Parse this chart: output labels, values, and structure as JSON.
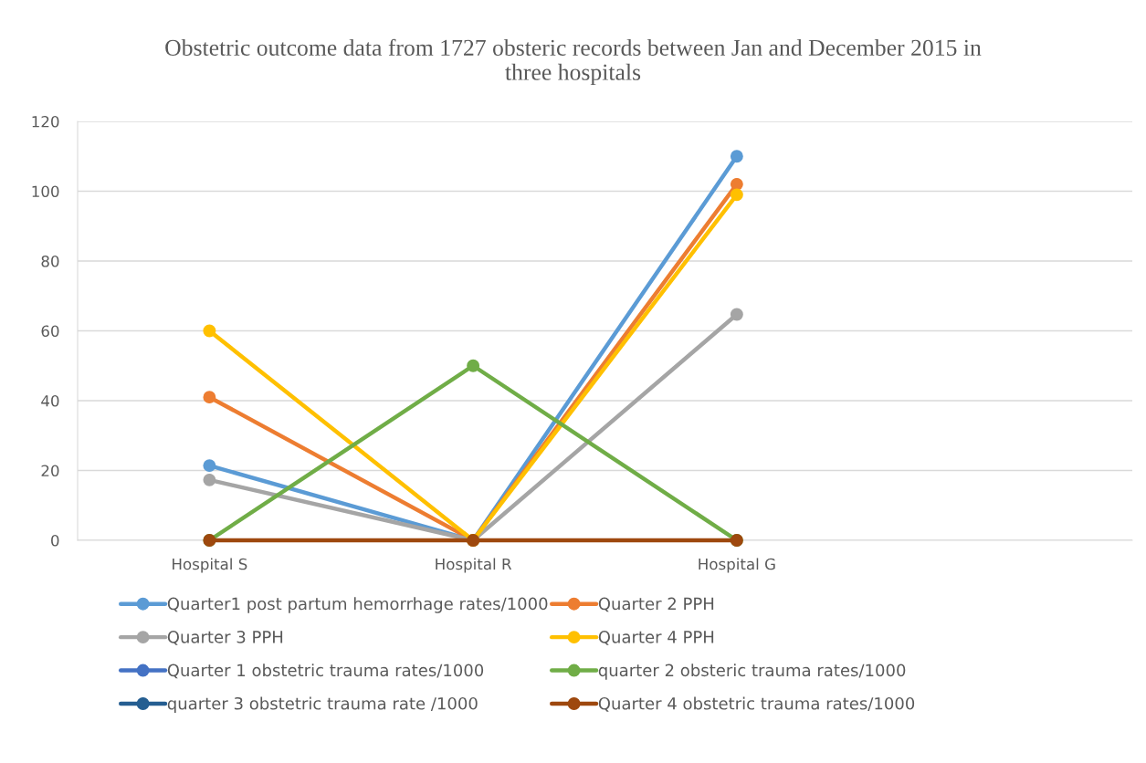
{
  "chart_data": {
    "type": "line",
    "title": "Obstetric outcome data from 1727 obsteric records between Jan and December 2015 in three hospitals",
    "categories": [
      "Hospital S",
      "Hospital R",
      "Hospital G",
      null
    ],
    "series": [
      {
        "name": "Quarter1 post partum hemorrhage rates/1000",
        "color": "#5b9bd5",
        "values": [
          21.4,
          0,
          110,
          null
        ]
      },
      {
        "name": "Quarter 2 PPH",
        "color": "#ed7d31",
        "values": [
          41,
          0,
          102,
          null
        ]
      },
      {
        "name": "Quarter 3 PPH",
        "color": "#a5a5a5",
        "values": [
          17.3,
          0,
          64.7,
          null
        ]
      },
      {
        "name": "Quarter 4 PPH",
        "color": "#ffc000",
        "values": [
          60,
          0,
          99,
          null
        ]
      },
      {
        "name": "Quarter 1 obstetric trauma rates/1000",
        "color": "#4472c4",
        "values": [
          null,
          null,
          null,
          null
        ]
      },
      {
        "name": "quarter 2 obsteric trauma rates/1000",
        "color": "#70ad47",
        "values": [
          0,
          50,
          0,
          null
        ]
      },
      {
        "name": "quarter 3 obstetric trauma rate /1000",
        "color": "#255e91",
        "values": [
          null,
          null,
          null,
          null
        ]
      },
      {
        "name": "Quarter 4 obstetric trauma rates/1000",
        "color": "#9e480e",
        "values": [
          0,
          0,
          0,
          null
        ]
      }
    ],
    "ylim": [
      0,
      120
    ],
    "yticks": [
      0,
      20,
      40,
      60,
      80,
      100,
      120
    ],
    "grid": "y",
    "legend": "bottom",
    "marker": "circle",
    "line_style": "solid"
  }
}
